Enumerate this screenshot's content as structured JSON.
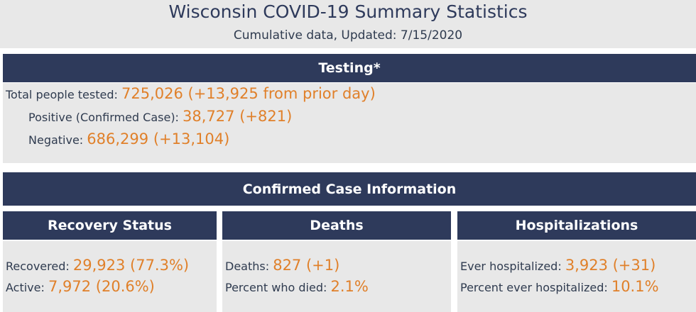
{
  "header": {
    "title": "Wisconsin COVID-19 Summary Statistics",
    "subtitle": "Cumulative data, Updated: 7/15/2020"
  },
  "testing": {
    "title": "Testing*",
    "rows": [
      {
        "label": "Total people tested:",
        "value": "725,026 (+13,925 from prior day)"
      },
      {
        "label": "Positive (Confirmed Case):",
        "value": "38,727 (+821)"
      },
      {
        "label": "Negative:",
        "value": "686,299 (+13,104)"
      }
    ]
  },
  "confirmed": {
    "title": "Confirmed Case Information"
  },
  "panels": [
    {
      "title": "Recovery Status",
      "rows": [
        {
          "label": "Recovered:",
          "value": "29,923 (77.3%)"
        },
        {
          "label": "Active:",
          "value": "7,972 (20.6%)"
        }
      ]
    },
    {
      "title": "Deaths",
      "rows": [
        {
          "label": "Deaths:",
          "value": "827 (+1)"
        },
        {
          "label": "Percent who died:",
          "value": "2.1%"
        }
      ]
    },
    {
      "title": "Hospitalizations",
      "rows": [
        {
          "label": "Ever hospitalized:",
          "value": "3,923 (+31)"
        },
        {
          "label": "Percent ever hospitalized:",
          "value": "10.1%"
        }
      ]
    }
  ]
}
